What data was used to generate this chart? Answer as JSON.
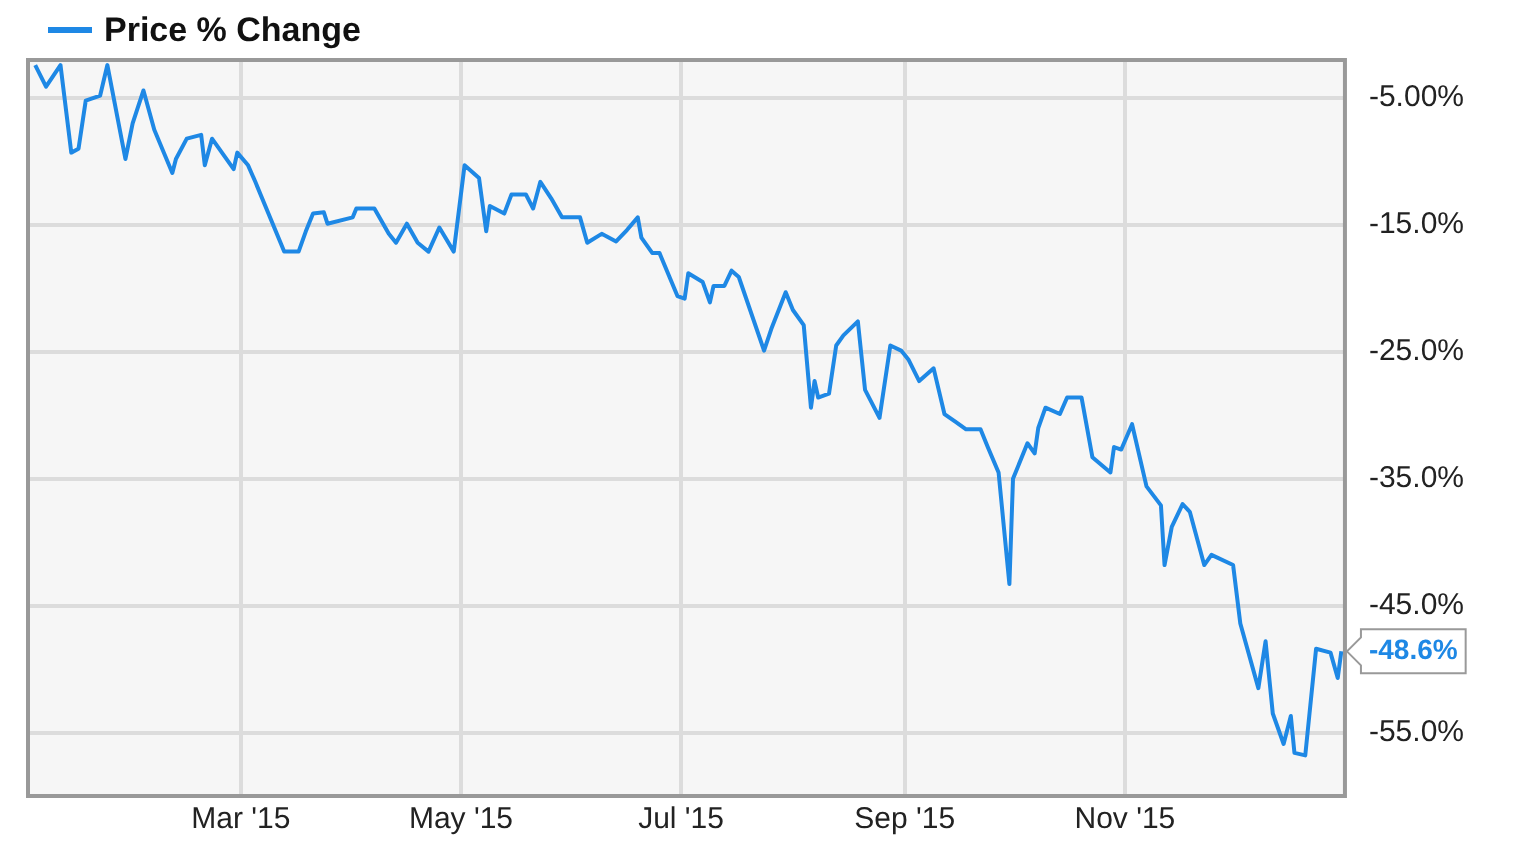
{
  "chart_data": {
    "type": "line",
    "x": [
      "2015-01-03",
      "2015-01-06",
      "2015-01-10",
      "2015-01-13",
      "2015-01-15",
      "2015-01-17",
      "2015-01-21",
      "2015-01-23",
      "2015-01-28",
      "2015-01-30",
      "2015-02-02",
      "2015-02-05",
      "2015-02-10",
      "2015-02-11",
      "2015-02-14",
      "2015-02-18",
      "2015-02-19",
      "2015-02-21",
      "2015-02-27",
      "2015-02-28",
      "2015-03-03",
      "2015-03-05",
      "2015-03-12",
      "2015-03-13",
      "2015-03-17",
      "2015-03-19",
      "2015-03-21",
      "2015-03-24",
      "2015-03-25",
      "2015-04-01",
      "2015-04-02",
      "2015-04-07",
      "2015-04-11",
      "2015-04-13",
      "2015-04-16",
      "2015-04-19",
      "2015-04-22",
      "2015-04-25",
      "2015-04-29",
      "2015-05-02",
      "2015-05-06",
      "2015-05-08",
      "2015-05-09",
      "2015-05-13",
      "2015-05-15",
      "2015-05-19",
      "2015-05-21",
      "2015-05-23",
      "2015-05-26",
      "2015-05-29",
      "2015-06-03",
      "2015-06-05",
      "2015-06-09",
      "2015-06-13",
      "2015-06-16",
      "2015-06-19",
      "2015-06-20",
      "2015-06-23",
      "2015-06-25",
      "2015-06-30",
      "2015-07-02",
      "2015-07-03",
      "2015-07-07",
      "2015-07-09",
      "2015-07-10",
      "2015-07-13",
      "2015-07-15",
      "2015-07-17",
      "2015-07-24",
      "2015-07-26",
      "2015-07-30",
      "2015-08-01",
      "2015-08-04",
      "2015-08-06",
      "2015-08-07",
      "2015-08-08",
      "2015-08-11",
      "2015-08-13",
      "2015-08-15",
      "2015-08-19",
      "2015-08-21",
      "2015-08-25",
      "2015-08-28",
      "2015-08-31",
      "2015-09-02",
      "2015-09-05",
      "2015-09-09",
      "2015-09-12",
      "2015-09-15",
      "2015-09-18",
      "2015-09-22",
      "2015-09-24",
      "2015-09-27",
      "2015-09-30",
      "2015-10-01",
      "2015-10-05",
      "2015-10-07",
      "2015-10-08",
      "2015-10-10",
      "2015-10-14",
      "2015-10-16",
      "2015-10-20",
      "2015-10-23",
      "2015-10-28",
      "2015-10-29",
      "2015-10-31",
      "2015-11-03",
      "2015-11-07",
      "2015-11-11",
      "2015-11-12",
      "2015-11-14",
      "2015-11-17",
      "2015-11-19",
      "2015-11-23",
      "2015-11-25",
      "2015-12-01",
      "2015-12-03",
      "2015-12-08",
      "2015-12-10",
      "2015-12-12",
      "2015-12-15",
      "2015-12-17",
      "2015-12-18",
      "2015-12-21",
      "2015-12-24",
      "2015-12-28",
      "2015-12-30",
      "2015-12-31"
    ],
    "series": [
      {
        "name": "Price % Change",
        "color": "#1e88e5",
        "values": [
          -2.4,
          -4.1,
          -2.4,
          -9.3,
          -9.0,
          -5.2,
          -4.8,
          -2.4,
          -9.8,
          -7.0,
          -4.4,
          -7.5,
          -10.9,
          -9.8,
          -8.2,
          -7.9,
          -10.3,
          -8.2,
          -10.6,
          -9.3,
          -10.3,
          -11.6,
          -16.4,
          -17.1,
          -17.1,
          -15.5,
          -14.1,
          -14.0,
          -14.9,
          -14.4,
          -13.7,
          -13.7,
          -15.7,
          -16.4,
          -14.9,
          -16.4,
          -17.1,
          -15.2,
          -17.1,
          -10.3,
          -11.3,
          -15.5,
          -13.5,
          -14.1,
          -12.6,
          -12.6,
          -13.7,
          -11.6,
          -12.9,
          -14.4,
          -14.4,
          -16.4,
          -15.7,
          -16.3,
          -15.4,
          -14.4,
          -16.0,
          -17.2,
          -17.2,
          -20.6,
          -20.8,
          -18.8,
          -19.5,
          -21.1,
          -19.8,
          -19.8,
          -18.6,
          -19.1,
          -24.9,
          -23.2,
          -20.3,
          -21.7,
          -22.9,
          -29.4,
          -27.3,
          -28.6,
          -28.3,
          -24.5,
          -23.7,
          -22.6,
          -28.0,
          -30.2,
          -24.5,
          -24.9,
          -25.6,
          -27.3,
          -26.3,
          -29.9,
          -30.5,
          -31.1,
          -31.1,
          -32.5,
          -34.5,
          -43.3,
          -35.0,
          -32.2,
          -33.0,
          -31.0,
          -29.4,
          -29.9,
          -28.6,
          -28.6,
          -33.3,
          -34.5,
          -32.5,
          -32.7,
          -30.7,
          -35.6,
          -37.1,
          -41.8,
          -38.8,
          -37.0,
          -37.6,
          -41.8,
          -41.0,
          -41.8,
          -46.4,
          -51.5,
          -47.8,
          -53.5,
          -55.9,
          -53.7,
          -56.6,
          -56.8,
          -48.4,
          -48.7,
          -50.7,
          -48.6
        ],
        "value_labels": [
          null,
          null,
          null,
          null,
          null,
          null,
          null,
          null,
          null,
          null,
          null,
          null,
          null,
          null,
          null,
          null,
          null,
          null,
          null,
          null,
          null,
          null,
          null,
          null,
          null,
          null,
          null,
          null,
          null,
          null,
          null,
          null,
          null,
          null,
          null,
          null,
          null,
          null,
          null,
          null,
          null,
          null,
          null,
          null,
          null,
          null,
          null,
          null,
          null,
          null,
          null,
          null,
          null,
          null,
          null,
          null,
          null,
          null,
          null,
          null,
          null,
          null,
          null,
          null,
          null,
          null,
          null,
          null,
          null,
          null,
          null,
          null,
          null,
          null,
          null,
          null,
          null,
          null,
          null,
          null,
          null,
          null,
          null,
          null,
          null,
          null,
          null,
          null,
          null,
          null,
          null,
          null,
          null,
          null,
          null,
          null,
          null,
          null,
          null,
          null,
          null,
          null,
          null,
          null,
          null,
          null,
          null,
          null,
          null,
          null,
          null,
          null,
          null,
          null,
          null,
          null,
          null,
          null,
          null,
          null,
          null,
          null,
          null,
          null,
          null,
          null,
          null,
          "-48.6%"
        ]
      }
    ],
    "xlim": [
      "2015-01-01",
      "2016-01-01"
    ],
    "xticks": [
      {
        "value": "2015-03-01",
        "label": "Mar '15"
      },
      {
        "value": "2015-05-01",
        "label": "May '15"
      },
      {
        "value": "2015-07-01",
        "label": "Jul '15"
      },
      {
        "value": "2015-09-01",
        "label": "Sep '15"
      },
      {
        "value": "2015-11-01",
        "label": "Nov '15"
      }
    ],
    "ylim": [
      -60,
      -2
    ],
    "yticks": [
      {
        "value": -5,
        "label": "-5.00%"
      },
      {
        "value": -15,
        "label": "-15.0%"
      },
      {
        "value": -25,
        "label": "-25.0%"
      },
      {
        "value": -35,
        "label": "-35.0%"
      },
      {
        "value": -45,
        "label": "-45.0%"
      },
      {
        "value": -55,
        "label": "-55.0%"
      }
    ],
    "grid": true,
    "legend": "top left",
    "marker": "none",
    "line_style": "solid"
  }
}
